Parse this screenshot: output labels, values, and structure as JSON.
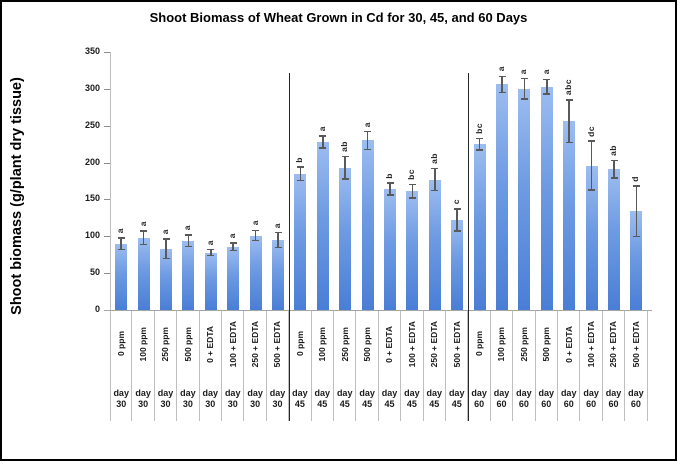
{
  "title": "Shoot Biomass of Wheat Grown in Cd for 30, 45, and 60 Days",
  "y_axis": {
    "label": "Shoot biomass (g/plant dry tissue)",
    "ticks": [
      0,
      50,
      100,
      150,
      200,
      250,
      300,
      350
    ]
  },
  "colors": {
    "bar_gradient_top": "#9dbdf0",
    "bar_gradient_bottom": "#4a7ed6",
    "error_bar": "#595959",
    "axis": "#a6a6a6",
    "cell_border": "#bfbfbf",
    "group_divider": "#262626"
  },
  "chart_data": {
    "type": "bar",
    "title": "Shoot Biomass of Wheat Grown in Cd for 30, 45, and 60 Days",
    "xlabel": "",
    "ylabel": "Shoot biomass (g/plant dry tissue)",
    "ylim": [
      0,
      350
    ],
    "ytick_step": 50,
    "grid": false,
    "legend_position": "none",
    "error_bars": true,
    "groups": [
      {
        "group_label_line1": "day",
        "group_label_line2": "30",
        "categories": [
          "0 ppm",
          "100 ppm",
          "250 ppm",
          "500 ppm",
          "0 + EDTA",
          "100 + EDTA",
          "250 + EDTA",
          "500 + EDTA"
        ],
        "values": [
          90,
          98,
          83,
          94,
          78,
          86,
          101,
          95
        ],
        "errors": [
          9,
          10,
          14,
          9,
          5,
          6,
          8,
          11
        ],
        "letters": [
          "a",
          "a",
          "a",
          "a",
          "a",
          "a",
          "a",
          "a"
        ]
      },
      {
        "group_label_line1": "day",
        "group_label_line2": "45",
        "categories": [
          "0 ppm",
          "100 ppm",
          "250 ppm",
          "500 ppm",
          "0 + EDTA",
          "100 + EDTA",
          "250 + EDTA",
          "500 + EDTA"
        ],
        "values": [
          185,
          228,
          193,
          230,
          164,
          161,
          177,
          122
        ],
        "errors": [
          10,
          9,
          16,
          13,
          9,
          10,
          16,
          16
        ],
        "letters": [
          "b",
          "a",
          "ab",
          "a",
          "b",
          "bc",
          "ab",
          "c"
        ]
      },
      {
        "group_label_line1": "day",
        "group_label_line2": "60",
        "categories": [
          "0 ppm",
          "100 ppm",
          "250 ppm",
          "500 ppm",
          "0 + EDTA",
          "100 + EDTA",
          "250 + EDTA",
          "500 + EDTA"
        ],
        "values": [
          225,
          306,
          300,
          303,
          256,
          196,
          191,
          134
        ],
        "errors": [
          9,
          12,
          15,
          11,
          30,
          34,
          13,
          35
        ],
        "letters": [
          "bc",
          "a",
          "a",
          "a",
          "abc",
          "dc",
          "ab",
          "d"
        ]
      }
    ]
  }
}
